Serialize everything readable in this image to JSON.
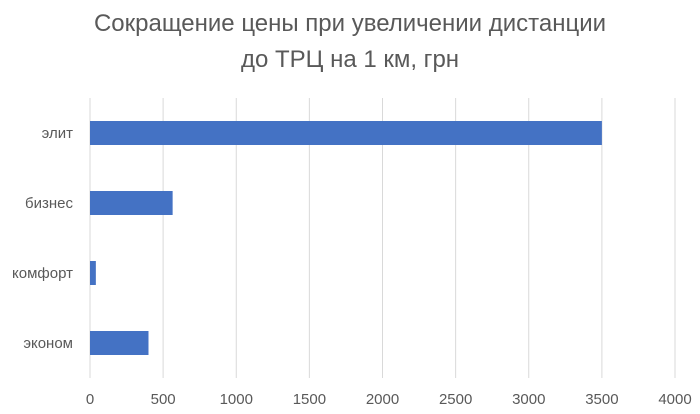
{
  "chart_data": {
    "type": "bar",
    "orientation": "horizontal",
    "title": [
      "Сокращение цены при увеличении дистанции",
      "до ТРЦ на 1 км, грн"
    ],
    "categories": [
      "элит",
      "бизнес",
      "комфорт",
      "эконом"
    ],
    "values": [
      3500,
      565,
      40,
      400
    ],
    "xlim": [
      0,
      4000
    ],
    "xticks": [
      0,
      500,
      1000,
      1500,
      2000,
      2500,
      3000,
      3500,
      4000
    ],
    "grid": true,
    "legend": "none",
    "bar_color": "#4472C4",
    "grid_color": "#D9D9D9",
    "text_color": "#595959"
  }
}
